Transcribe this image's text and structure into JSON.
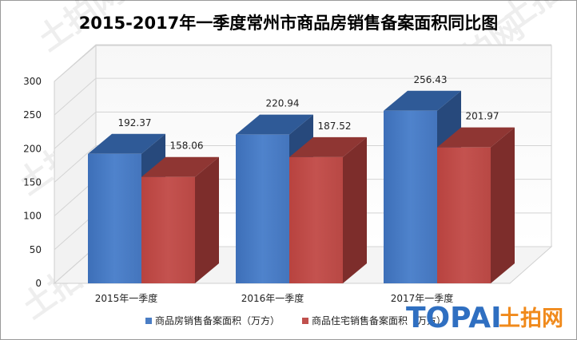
{
  "chart_data": {
    "type": "bar",
    "title": "2015-2017年一季度常州市商品房销售备案面积同比图",
    "categories": [
      "2015年一季度",
      "2016年一季度",
      "2017年一季度"
    ],
    "series": [
      {
        "name": "商品房销售备案面积（万方）",
        "values": [
          192.37,
          220.94,
          256.43
        ],
        "labels": [
          "192.37",
          "220.94",
          "256.43"
        ],
        "color": "#4a7dc4"
      },
      {
        "name": "商品住宅销售备案面积（万方）",
        "values": [
          158.06,
          187.52,
          201.97
        ],
        "labels": [
          "158.06",
          "187.52",
          "201.97"
        ],
        "color": "#c0504d"
      }
    ],
    "yticks": [
      "0",
      "50",
      "100",
      "150",
      "200",
      "250",
      "300"
    ],
    "ylim": [
      0,
      300
    ],
    "xlabel": "",
    "ylabel": "",
    "grid": true,
    "legend_position": "bottom",
    "render": "3d-columns"
  },
  "watermark": {
    "brand_latin": "TOPAI",
    "brand_cn": "土拍网",
    "watermark_text": "土拍网"
  }
}
